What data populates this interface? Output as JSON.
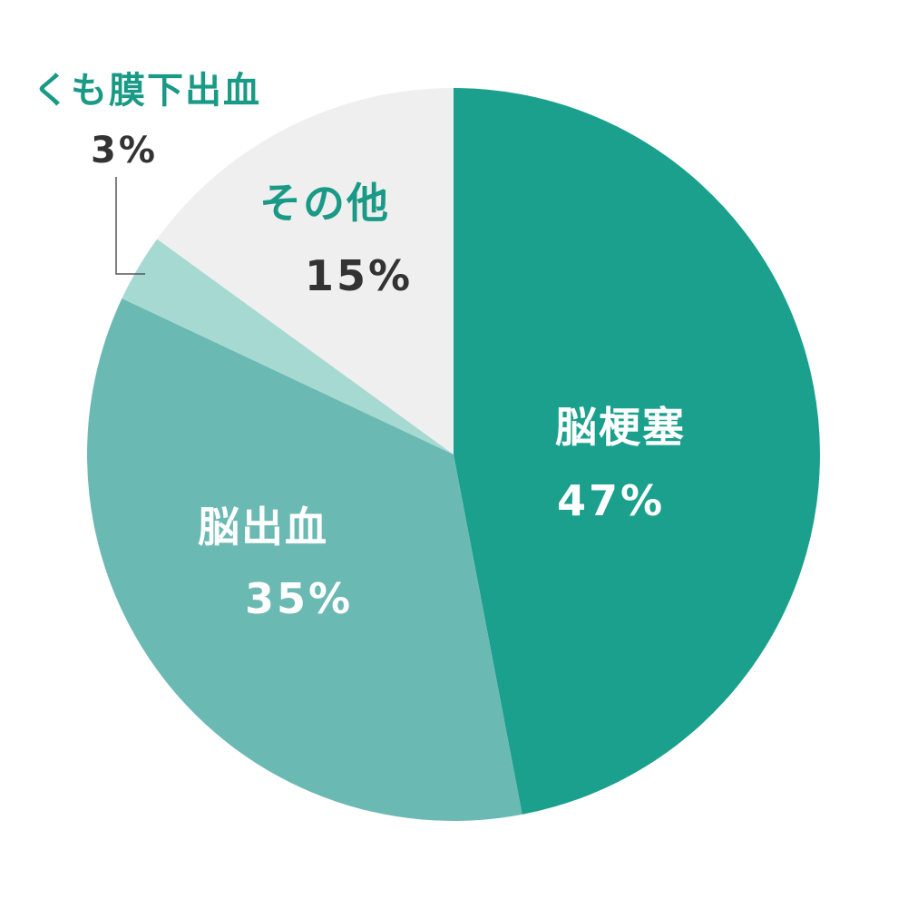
{
  "chart_data": {
    "type": "pie",
    "start_angle_deg": 0,
    "direction": "clockwise",
    "slices": [
      {
        "label": "脳梗塞",
        "value": 47,
        "value_label": "47%",
        "color": "#1aa08c",
        "label_color": "#ffffff",
        "value_color": "#ffffff"
      },
      {
        "label": "脳出血",
        "value": 35,
        "value_label": "35%",
        "color": "#6bb9b3",
        "label_color": "#ffffff",
        "value_color": "#ffffff"
      },
      {
        "label": "くも膜下出血",
        "value": 3,
        "value_label": "3%",
        "color": "#a7d9d3",
        "label_color": "#1a9a86",
        "value_color": "#333333"
      },
      {
        "label": "その他",
        "value": 15,
        "value_label": "15%",
        "color": "#efefef",
        "label_color": "#1a9a86",
        "value_color": "#333333"
      }
    ]
  }
}
